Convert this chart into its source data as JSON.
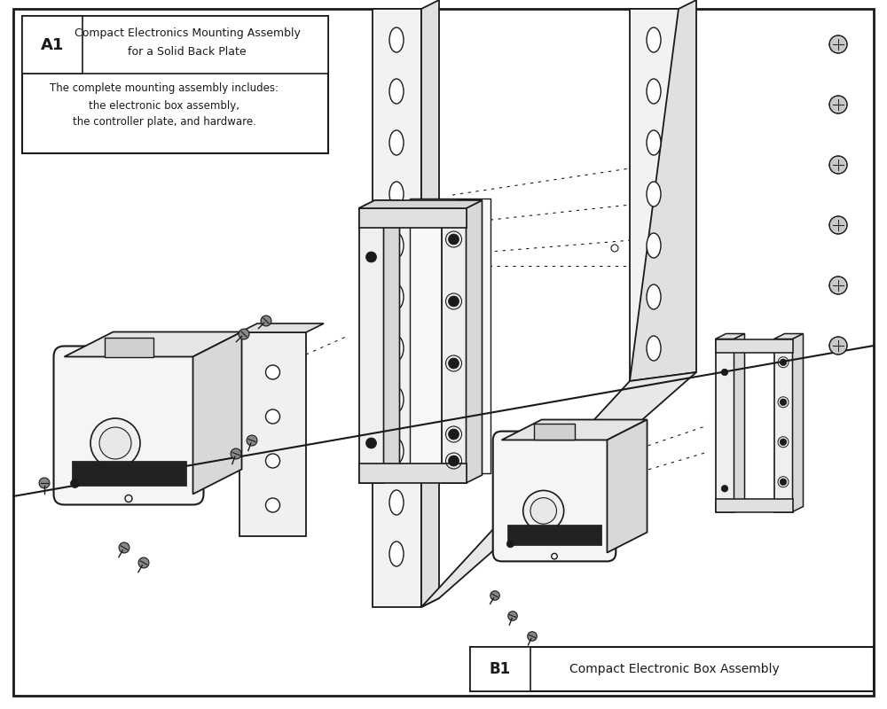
{
  "bg_color": "#ffffff",
  "line_color": "#1a1a1a",
  "title_A1": {
    "id": "A1",
    "line1": "Compact Electronics Mounting Assembly",
    "line2": "for a Solid Back Plate",
    "desc1": "The complete mounting assembly includes:",
    "desc2": "the electronic box assembly,",
    "desc3": "the controller plate, and hardware."
  },
  "title_B1": {
    "id": "B1",
    "text": "Compact Electronic Box Assembly"
  }
}
